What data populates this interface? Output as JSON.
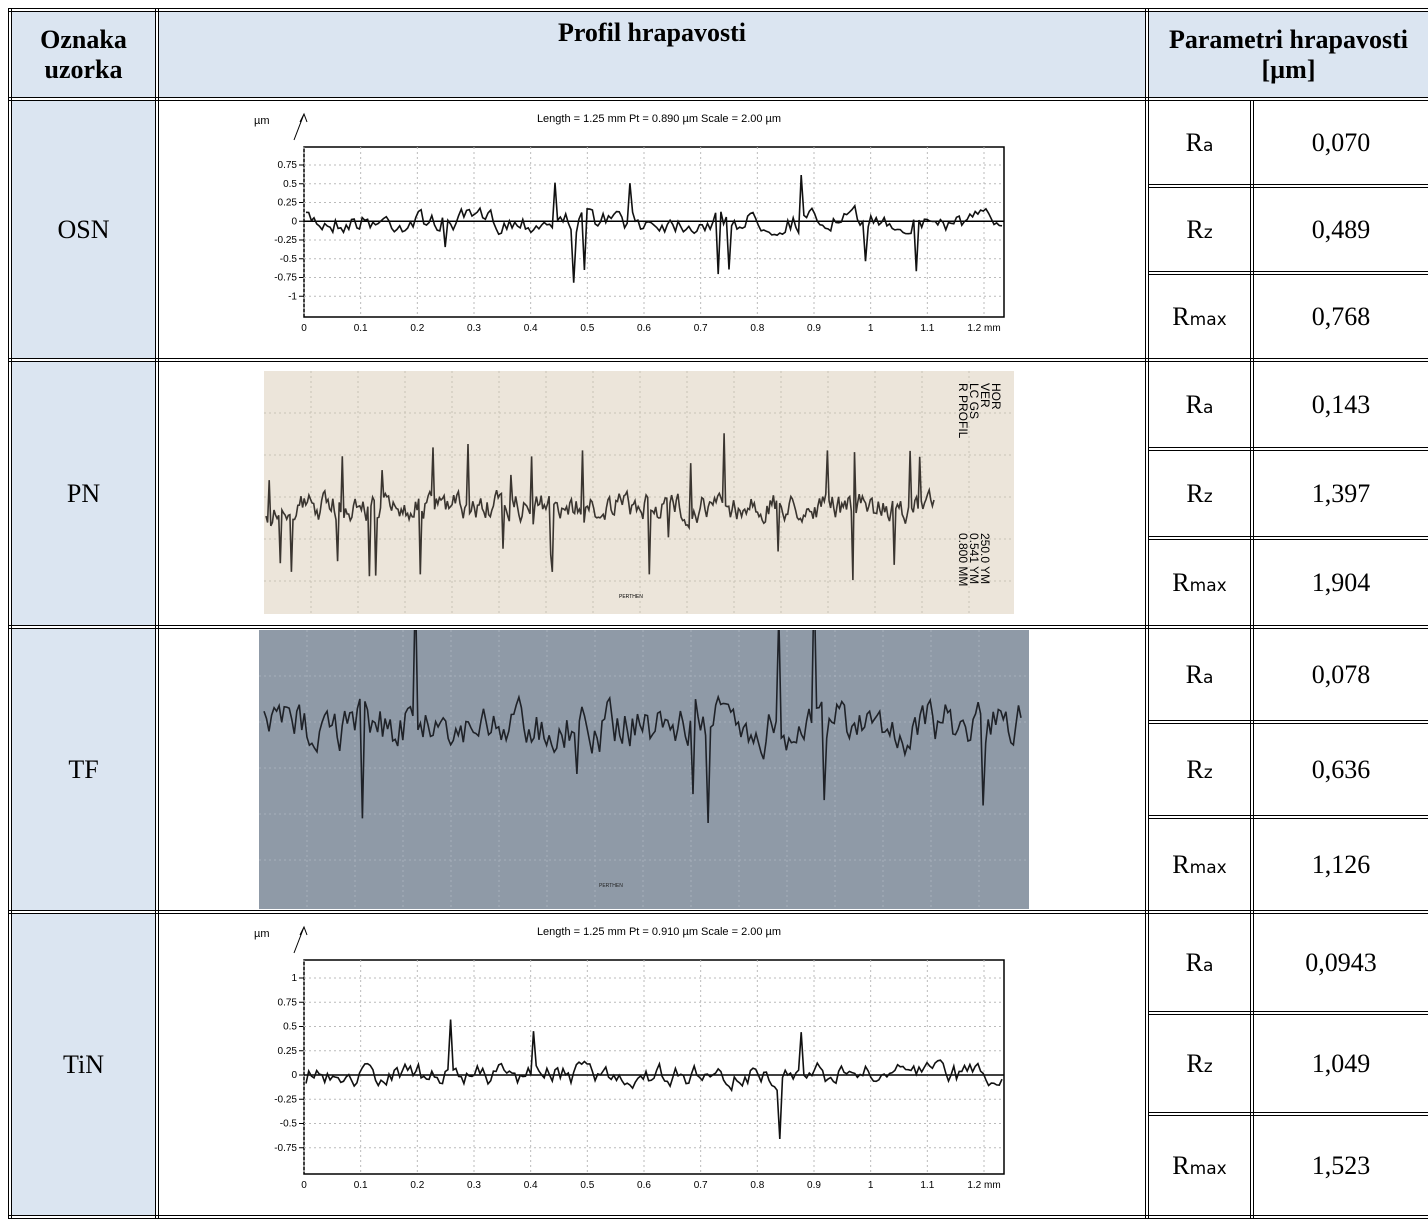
{
  "table": {
    "headers": [
      "Oznaka uzorka",
      "Profil hrapavosti",
      "Parametri hrapavosti [µm]"
    ],
    "rows": [
      {
        "label": "OSN",
        "profile": {
          "unit": "µm",
          "caption": "Length = 1.25 mm  Pt = 0.890 µm  Scale = 2.00 µm",
          "yticks": [
            "0.75",
            "0.5",
            "0.25",
            "0",
            "-0.25",
            "-0.5",
            "-0.75",
            "-1"
          ],
          "xticks": [
            "0",
            "0.1",
            "0.2",
            "0.3",
            "0.4",
            "0.5",
            "0.6",
            "0.7",
            "0.8",
            "0.9",
            "1",
            "1.1",
            "1.2 mm"
          ]
        },
        "params": [
          {
            "symbol": "R",
            "sub": "a",
            "value": "0,070"
          },
          {
            "symbol": "R",
            "sub": "z",
            "value": "0,489"
          },
          {
            "symbol": "R",
            "sub": "max",
            "value": "0,768"
          }
        ]
      },
      {
        "label": "PN",
        "profile": {
          "side_text": [
            "R PROFIL",
            "LC    GS",
            "VER",
            "HOR"
          ],
          "side_values": [
            "0.800 MM",
            "0.541 YM",
            "250.0 YM"
          ],
          "maker": "PERTHEN"
        },
        "params": [
          {
            "symbol": "R",
            "sub": "a",
            "value": "0,143"
          },
          {
            "symbol": "R",
            "sub": "z",
            "value": "1,397"
          },
          {
            "symbol": "R",
            "sub": "max",
            "value": "1,904"
          }
        ]
      },
      {
        "label": "TF",
        "profile": {
          "maker": "PERTHEN"
        },
        "params": [
          {
            "symbol": "R",
            "sub": "a",
            "value": "0,078"
          },
          {
            "symbol": "R",
            "sub": "z",
            "value": "0,636"
          },
          {
            "symbol": "R",
            "sub": "max",
            "value": "1,126"
          }
        ]
      },
      {
        "label": "TiN",
        "profile": {
          "unit": "µm",
          "caption": "Length = 1.25 mm  Pt = 0.910 µm  Scale = 2.00 µm",
          "yticks": [
            "1",
            "0.75",
            "0.5",
            "0.25",
            "0",
            "-0.25",
            "-0.5",
            "-0.75"
          ],
          "xticks": [
            "0",
            "0.1",
            "0.2",
            "0.3",
            "0.4",
            "0.5",
            "0.6",
            "0.7",
            "0.8",
            "0.9",
            "1",
            "1.1",
            "1.2 mm"
          ]
        },
        "params": [
          {
            "symbol": "R",
            "sub": "a",
            "value": "0,0943"
          },
          {
            "symbol": "R",
            "sub": "z",
            "value": "1,049"
          },
          {
            "symbol": "R",
            "sub": "max",
            "value": "1,523"
          }
        ]
      }
    ]
  }
}
